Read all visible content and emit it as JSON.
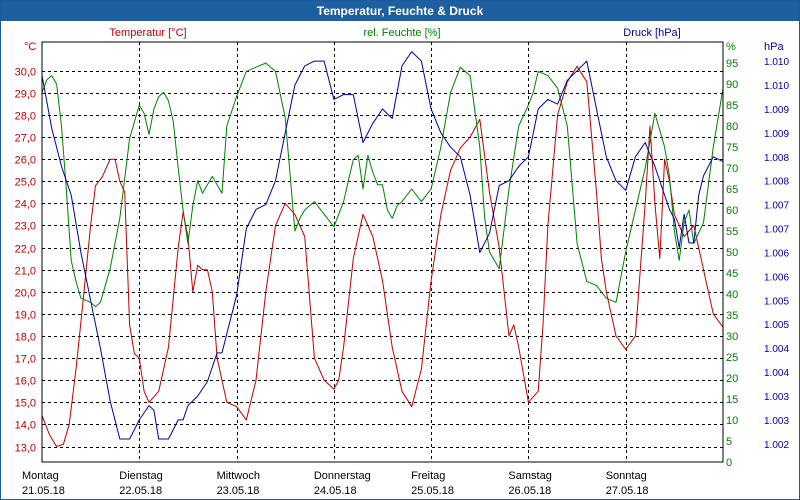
{
  "chart_data": {
    "type": "line",
    "title": "Temperatur, Feuchte & Druck",
    "axes": {
      "temperature": {
        "header": "Temperatur [°C]",
        "unit": "°C",
        "range": [
          12.3,
          31.3
        ],
        "ticks": [
          "13,0",
          "14,0",
          "15,0",
          "16,0",
          "17,0",
          "18,0",
          "19,0",
          "20,0",
          "21,0",
          "22,0",
          "23,0",
          "24,0",
          "25,0",
          "26,0",
          "27,0",
          "28,0",
          "29,0",
          "30,0"
        ],
        "tick_values": [
          13,
          14,
          15,
          16,
          17,
          18,
          19,
          20,
          21,
          22,
          23,
          24,
          25,
          26,
          27,
          28,
          29,
          30
        ],
        "color": "#c00000"
      },
      "humidity": {
        "header": "rel. Feuchte [%]",
        "unit": "%",
        "range": [
          0,
          100
        ],
        "ticks": [
          "0",
          "5",
          "10",
          "15",
          "20",
          "25",
          "30",
          "35",
          "40",
          "45",
          "50",
          "55",
          "60",
          "65",
          "70",
          "75",
          "80",
          "85",
          "90",
          "95"
        ],
        "tick_values": [
          0,
          5,
          10,
          15,
          20,
          25,
          30,
          35,
          40,
          45,
          50,
          55,
          60,
          65,
          70,
          75,
          80,
          85,
          90,
          95
        ],
        "color": "#008000"
      },
      "pressure": {
        "header": "Druck [hPa]",
        "unit": "hPa",
        "range": [
          1001.62,
          1010.4
        ],
        "ticks": [
          "1.002",
          "1.003",
          "1.003",
          "1.004",
          "1.004",
          "1.005",
          "1.005",
          "1.006",
          "1.006",
          "1.007",
          "1.007",
          "1.008",
          "1.008",
          "1.009",
          "1.009",
          "1.010",
          "1.010"
        ],
        "tick_values": [
          1002.0,
          1002.5,
          1003.0,
          1003.5,
          1004.0,
          1004.5,
          1005.0,
          1005.5,
          1006.0,
          1006.5,
          1007.0,
          1007.5,
          1008.0,
          1008.5,
          1009.0,
          1009.5,
          1010.0
        ],
        "color": "#0000a0"
      }
    },
    "x_labels": [
      {
        "day": "Montag",
        "date": "21.05.18"
      },
      {
        "day": "Dienstag",
        "date": "22.05.18"
      },
      {
        "day": "Mittwoch",
        "date": "23.05.18"
      },
      {
        "day": "Donnerstag",
        "date": "24.05.18"
      },
      {
        "day": "Freitag",
        "date": "25.05.18"
      },
      {
        "day": "Samstag",
        "date": "26.05.18"
      },
      {
        "day": "Sonntag",
        "date": "27.05.18"
      }
    ],
    "x_range": [
      0,
      7
    ],
    "grid": true,
    "series": [
      {
        "name": "Temperatur",
        "axis": "temperature",
        "color": "#c00000",
        "x": [
          0.0,
          0.08,
          0.15,
          0.22,
          0.28,
          0.35,
          0.42,
          0.5,
          0.55,
          0.62,
          0.7,
          0.75,
          0.8,
          0.85,
          0.9,
          0.95,
          1.0,
          1.05,
          1.1,
          1.2,
          1.3,
          1.4,
          1.45,
          1.5,
          1.55,
          1.6,
          1.65,
          1.7,
          1.75,
          1.8,
          1.9,
          2.0,
          2.1,
          2.2,
          2.3,
          2.4,
          2.5,
          2.6,
          2.7,
          2.8,
          2.9,
          3.0,
          3.05,
          3.1,
          3.2,
          3.3,
          3.4,
          3.5,
          3.6,
          3.7,
          3.8,
          3.9,
          4.0,
          4.1,
          4.2,
          4.3,
          4.4,
          4.5,
          4.6,
          4.7,
          4.8,
          4.85,
          4.9,
          5.0,
          5.1,
          5.15,
          5.2,
          5.3,
          5.4,
          5.5,
          5.6,
          5.7,
          5.75,
          5.8,
          5.9,
          6.0,
          6.1,
          6.2,
          6.25,
          6.3,
          6.35,
          6.4,
          6.45,
          6.5,
          6.6,
          6.7,
          6.8,
          6.9,
          7.0
        ],
        "values": [
          14.4,
          13.5,
          13.0,
          13.1,
          14.0,
          16.5,
          19.5,
          23.0,
          24.8,
          25.2,
          26.0,
          26.0,
          25.0,
          24.5,
          18.5,
          17.2,
          17.0,
          15.5,
          15.0,
          15.5,
          17.5,
          22.0,
          23.6,
          22.5,
          20.0,
          21.2,
          21.0,
          21.0,
          20.0,
          17.0,
          15.0,
          14.8,
          14.2,
          16.0,
          20.0,
          23.0,
          24.0,
          23.5,
          22.5,
          17.0,
          16.0,
          15.6,
          16.0,
          17.5,
          21.5,
          23.5,
          22.5,
          20.5,
          17.5,
          15.5,
          14.8,
          16.5,
          20.5,
          23.5,
          25.5,
          26.5,
          27.0,
          27.8,
          24.5,
          22.0,
          18.0,
          18.5,
          17.5,
          15.0,
          15.5,
          18.5,
          23.0,
          28.0,
          29.5,
          30.2,
          29.5,
          24.5,
          21.5,
          20.0,
          18.0,
          17.4,
          18.0,
          24.0,
          27.5,
          24.0,
          21.5,
          26.0,
          25.0,
          23.5,
          22.5,
          23.0,
          21.0,
          19.0,
          18.4
        ]
      },
      {
        "name": "rel. Feuchte",
        "axis": "humidity",
        "color": "#008000",
        "x": [
          0.0,
          0.05,
          0.1,
          0.15,
          0.2,
          0.25,
          0.3,
          0.35,
          0.4,
          0.5,
          0.55,
          0.6,
          0.7,
          0.8,
          0.9,
          1.0,
          1.05,
          1.1,
          1.15,
          1.2,
          1.25,
          1.3,
          1.35,
          1.4,
          1.45,
          1.5,
          1.55,
          1.6,
          1.65,
          1.7,
          1.75,
          1.8,
          1.85,
          1.9,
          2.0,
          2.1,
          2.2,
          2.3,
          2.4,
          2.5,
          2.6,
          2.65,
          2.7,
          2.8,
          2.9,
          3.0,
          3.1,
          3.15,
          3.2,
          3.25,
          3.3,
          3.35,
          3.4,
          3.45,
          3.5,
          3.55,
          3.6,
          3.65,
          3.7,
          3.8,
          3.9,
          4.0,
          4.1,
          4.2,
          4.3,
          4.4,
          4.5,
          4.55,
          4.6,
          4.65,
          4.7,
          4.8,
          4.9,
          5.0,
          5.05,
          5.1,
          5.2,
          5.3,
          5.4,
          5.5,
          5.6,
          5.7,
          5.8,
          5.9,
          6.0,
          6.1,
          6.2,
          6.3,
          6.4,
          6.45,
          6.5,
          6.55,
          6.6,
          6.65,
          6.7,
          6.8,
          6.9,
          7.0
        ],
        "values": [
          88,
          91,
          92,
          90,
          80,
          65,
          48,
          43,
          39,
          38,
          37,
          38,
          46,
          58,
          77,
          85,
          83,
          78,
          84,
          87,
          88,
          86,
          81,
          70,
          60,
          52,
          61,
          67,
          64,
          66,
          68,
          66,
          64,
          80,
          87,
          93,
          94,
          95,
          93,
          82,
          55,
          58,
          60,
          62,
          59,
          56,
          62,
          67,
          72,
          73,
          65,
          73,
          69,
          66,
          66,
          60,
          58,
          61,
          62,
          65,
          62,
          65,
          75,
          88,
          94,
          92,
          75,
          58,
          50,
          48,
          46,
          65,
          80,
          85,
          88,
          93,
          92,
          89,
          80,
          52,
          43,
          42,
          39,
          38,
          50,
          60,
          70,
          83,
          75,
          68,
          55,
          48,
          57,
          60,
          52,
          57,
          75,
          89
        ]
      },
      {
        "name": "Druck",
        "axis": "pressure",
        "color": "#0000a0",
        "x": [
          0.0,
          0.1,
          0.2,
          0.3,
          0.4,
          0.5,
          0.6,
          0.7,
          0.8,
          0.9,
          1.0,
          1.1,
          1.15,
          1.2,
          1.3,
          1.4,
          1.45,
          1.5,
          1.6,
          1.7,
          1.8,
          1.85,
          1.9,
          2.0,
          2.1,
          2.2,
          2.3,
          2.4,
          2.5,
          2.6,
          2.7,
          2.8,
          2.9,
          3.0,
          3.1,
          3.2,
          3.3,
          3.4,
          3.5,
          3.6,
          3.7,
          3.8,
          3.9,
          4.0,
          4.1,
          4.2,
          4.3,
          4.4,
          4.5,
          4.6,
          4.7,
          4.8,
          4.9,
          5.0,
          5.1,
          5.2,
          5.3,
          5.4,
          5.5,
          5.6,
          5.7,
          5.8,
          5.9,
          6.0,
          6.1,
          6.2,
          6.3,
          6.4,
          6.45,
          6.5,
          6.55,
          6.6,
          6.65,
          6.7,
          6.75,
          6.8,
          6.9,
          7.0
        ],
        "values": [
          1009.7,
          1008.6,
          1007.8,
          1007.2,
          1006.0,
          1005.0,
          1004.0,
          1002.9,
          1002.1,
          1002.1,
          1002.5,
          1002.8,
          1002.7,
          1002.1,
          1002.1,
          1002.5,
          1002.5,
          1002.8,
          1003.0,
          1003.3,
          1003.9,
          1003.9,
          1004.3,
          1005.1,
          1006.5,
          1006.9,
          1007.0,
          1007.5,
          1008.5,
          1009.5,
          1009.9,
          1010.0,
          1010.0,
          1009.2,
          1009.3,
          1009.3,
          1008.3,
          1008.7,
          1009.0,
          1008.8,
          1009.9,
          1010.2,
          1010.0,
          1009.0,
          1008.5,
          1008.2,
          1008.0,
          1007.2,
          1006.0,
          1006.4,
          1007.4,
          1007.5,
          1007.8,
          1008.0,
          1009.0,
          1009.2,
          1009.1,
          1009.6,
          1009.8,
          1010.0,
          1009.0,
          1008.0,
          1007.5,
          1007.3,
          1008.0,
          1008.3,
          1007.8,
          1007.2,
          1006.9,
          1006.7,
          1006.1,
          1006.8,
          1006.2,
          1006.2,
          1007.2,
          1007.6,
          1008.0,
          1007.9
        ]
      }
    ]
  }
}
